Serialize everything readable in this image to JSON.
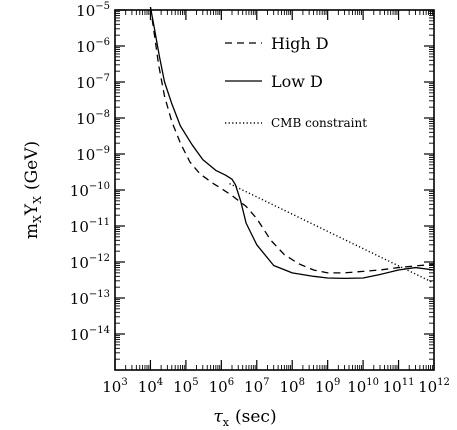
{
  "chart_data": {
    "type": "line",
    "x_scale": "log",
    "y_scale": "log",
    "xlim": [
      1000,
      1000000000000
    ],
    "ylim": [
      1e-15,
      1e-05
    ],
    "xlabel": {
      "main": "τ",
      "sub": "x",
      "unit": "(sec)"
    },
    "ylabel": {
      "main": "m",
      "sub1": "X",
      "mid": "Y",
      "sub2": "X",
      "unit": "(GeV)"
    },
    "x_ticks": [
      {
        "value": 1000,
        "base": "10",
        "exp": "3"
      },
      {
        "value": 10000,
        "base": "10",
        "exp": "4"
      },
      {
        "value": 100000,
        "base": "10",
        "exp": "5"
      },
      {
        "value": 1000000,
        "base": "10",
        "exp": "6"
      },
      {
        "value": 10000000,
        "base": "10",
        "exp": "7"
      },
      {
        "value": 100000000,
        "base": "10",
        "exp": "8"
      },
      {
        "value": 1000000000,
        "base": "10",
        "exp": "9"
      },
      {
        "value": 10000000000,
        "base": "10",
        "exp": "10"
      },
      {
        "value": 100000000000,
        "base": "10",
        "exp": "11"
      },
      {
        "value": 1000000000000,
        "base": "10",
        "exp": "12"
      }
    ],
    "y_ticks": [
      {
        "value": 1e-14,
        "base": "10",
        "exp": "−14"
      },
      {
        "value": 1e-13,
        "base": "10",
        "exp": "−13"
      },
      {
        "value": 1e-12,
        "base": "10",
        "exp": "−12"
      },
      {
        "value": 1e-11,
        "base": "10",
        "exp": "−11"
      },
      {
        "value": 1e-10,
        "base": "10",
        "exp": "−10"
      },
      {
        "value": 1e-09,
        "base": "10",
        "exp": "−9"
      },
      {
        "value": 1e-08,
        "base": "10",
        "exp": "−8"
      },
      {
        "value": 1e-07,
        "base": "10",
        "exp": "−7"
      },
      {
        "value": 1e-06,
        "base": "10",
        "exp": "−6"
      },
      {
        "value": 1e-05,
        "base": "10",
        "exp": "−5"
      }
    ],
    "series": [
      {
        "name": "High D",
        "dash": "dashed",
        "points": [
          [
            10000,
            1.2e-05
          ],
          [
            13000,
            2e-06
          ],
          [
            17000,
            3e-07
          ],
          [
            25000,
            4e-08
          ],
          [
            40000,
            8e-09
          ],
          [
            70000,
            2e-09
          ],
          [
            130000,
            6e-10
          ],
          [
            250000,
            2.8e-10
          ],
          [
            600000,
            1.5e-10
          ],
          [
            1000000,
            1.1e-10
          ],
          [
            2000000,
            7e-11
          ],
          [
            5000000,
            3.5e-11
          ],
          [
            10000000,
            1.6e-11
          ],
          [
            25000000,
            4e-12
          ],
          [
            60000000,
            1.6e-12
          ],
          [
            150000000,
            9e-13
          ],
          [
            400000000,
            6e-13
          ],
          [
            1000000000,
            5e-13
          ],
          [
            3000000000,
            5e-13
          ],
          [
            10000000000,
            5.5e-13
          ],
          [
            30000000000,
            6e-13
          ],
          [
            100000000000,
            7e-13
          ],
          [
            400000000000,
            8e-13
          ],
          [
            1000000000000,
            8.5e-13
          ]
        ]
      },
      {
        "name": "Low D",
        "dash": "solid",
        "points": [
          [
            10000,
            1.2e-05
          ],
          [
            13000,
            3e-06
          ],
          [
            18000,
            5e-07
          ],
          [
            25000,
            1e-07
          ],
          [
            40000,
            2.5e-08
          ],
          [
            70000,
            6e-09
          ],
          [
            150000,
            1.8e-09
          ],
          [
            300000,
            7e-10
          ],
          [
            700000,
            3.5e-10
          ],
          [
            1300000,
            2.6e-10
          ],
          [
            2000000,
            2e-10
          ],
          [
            2500000,
            1.4e-10
          ],
          [
            3500000,
            5e-11
          ],
          [
            5000000,
            1.2e-11
          ],
          [
            10000000,
            3e-12
          ],
          [
            30000000,
            8e-13
          ],
          [
            100000000,
            5e-13
          ],
          [
            400000000,
            4e-13
          ],
          [
            1000000000,
            3.6e-13
          ],
          [
            3000000000,
            3.5e-13
          ],
          [
            10000000000,
            3.6e-13
          ],
          [
            30000000000,
            4.5e-13
          ],
          [
            100000000000,
            6e-13
          ],
          [
            300000000000,
            7e-13
          ],
          [
            1000000000000,
            6e-13
          ]
        ]
      },
      {
        "name": "CMB constraint",
        "dash": "dotted",
        "points": [
          [
            1700000,
            1.5e-10
          ],
          [
            1000000000000,
            2.6e-13
          ]
        ]
      }
    ],
    "legend": {
      "placement": "top-right",
      "entries": [
        "High D",
        "Low D",
        "CMB constraint"
      ]
    }
  }
}
